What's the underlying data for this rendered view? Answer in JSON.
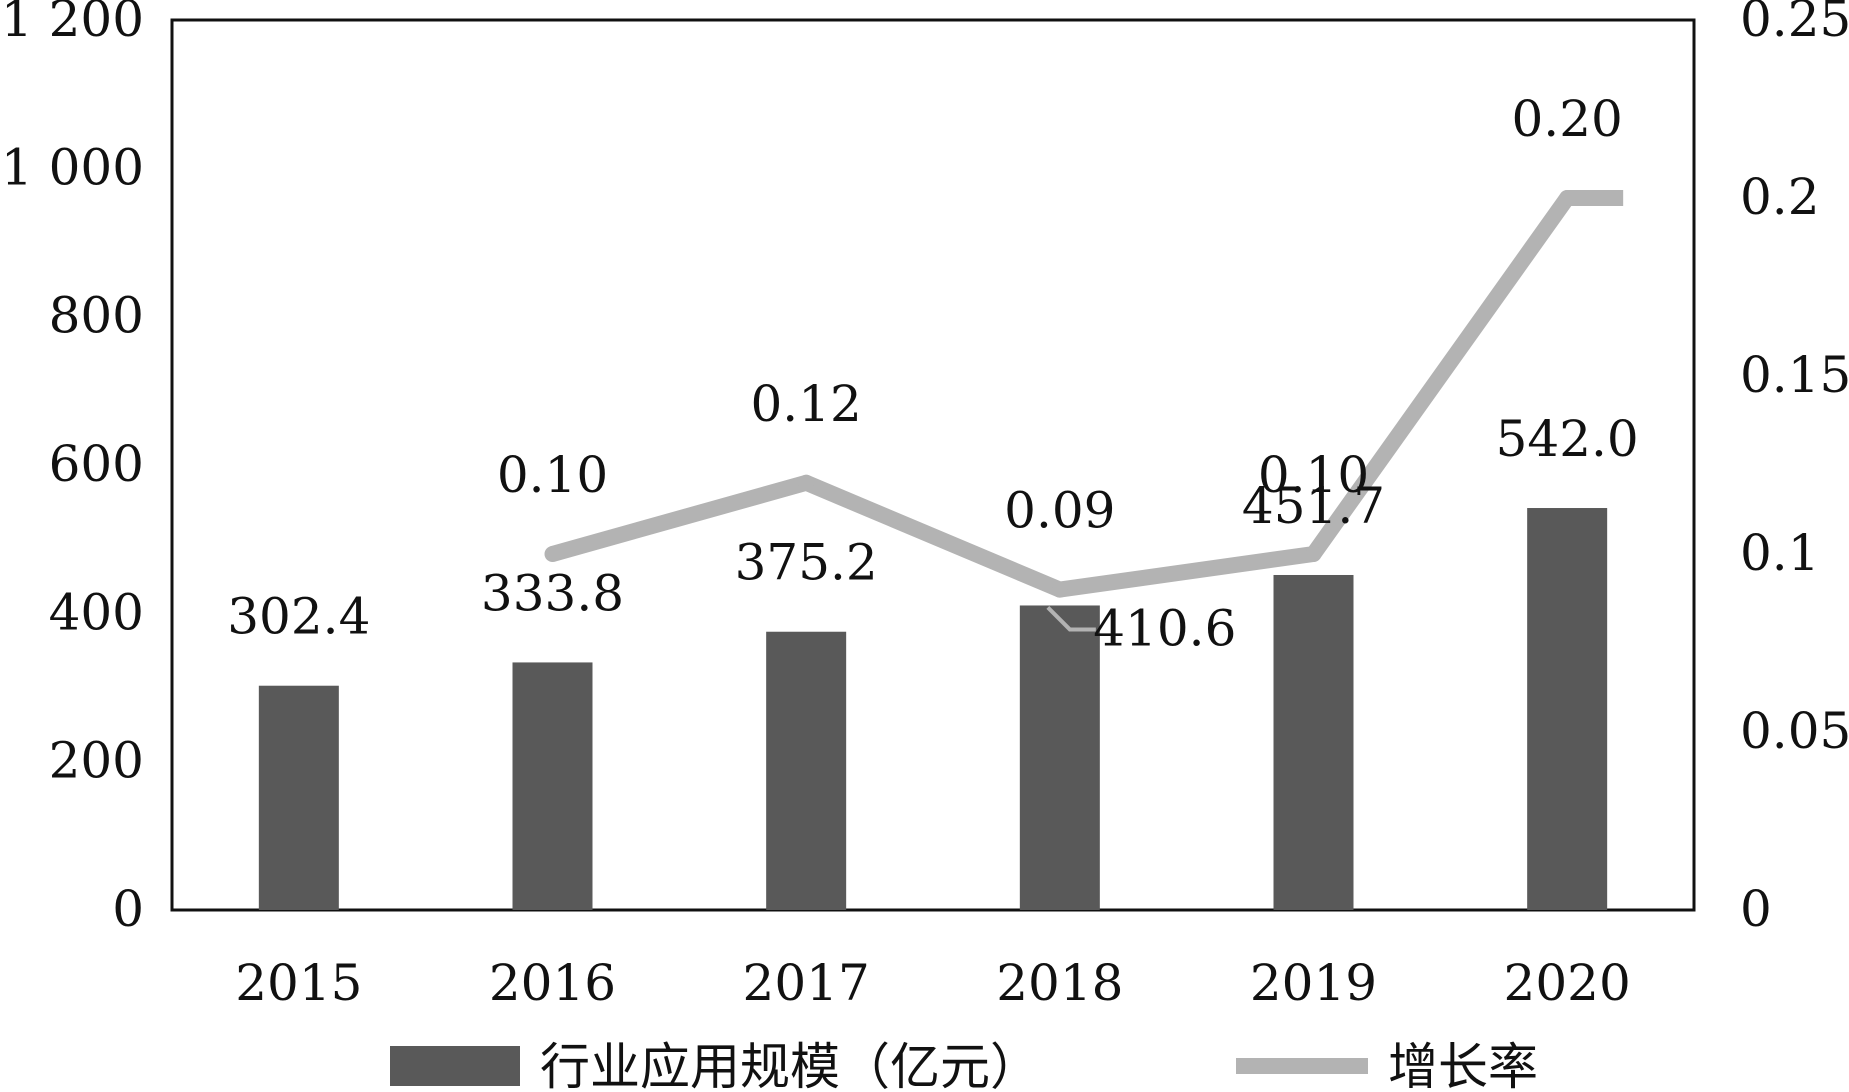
{
  "chart_data": {
    "type": "bar+line",
    "categories": [
      "2015",
      "2016",
      "2017",
      "2018",
      "2019",
      "2020"
    ],
    "bar_series": {
      "name": "行业应用规模（亿元）",
      "values": [
        302.4,
        333.8,
        375.2,
        410.6,
        451.7,
        542.0
      ],
      "labels": [
        "302.4",
        "333.8",
        "375.2",
        "410.6",
        "451.7",
        "542.0"
      ],
      "color": "#595959"
    },
    "line_series": {
      "name": "增长率",
      "values": [
        null,
        0.1,
        0.12,
        0.09,
        0.1,
        0.2
      ],
      "labels": [
        "",
        "0.10",
        "0.12",
        "0.09",
        "0.10",
        "0.20"
      ],
      "color": "#b3b3b3"
    },
    "y_left": {
      "ylim": [
        0,
        1200
      ],
      "ticks": [
        0,
        200,
        400,
        600,
        800,
        1000,
        1200
      ],
      "tick_labels": [
        "0",
        "200",
        "400",
        "600",
        "800",
        "1 000",
        "1 200"
      ]
    },
    "y_right": {
      "ylim": [
        0,
        0.25
      ],
      "ticks": [
        0,
        0.05,
        0.1,
        0.15,
        0.2,
        0.25
      ],
      "tick_labels": [
        "0",
        "0.05",
        "0.1",
        "0.15",
        "0.2",
        "0.25"
      ]
    },
    "legend": {
      "placement": "bottom",
      "items": [
        "行业应用规模（亿元）",
        "增长率"
      ]
    },
    "grid": false
  }
}
